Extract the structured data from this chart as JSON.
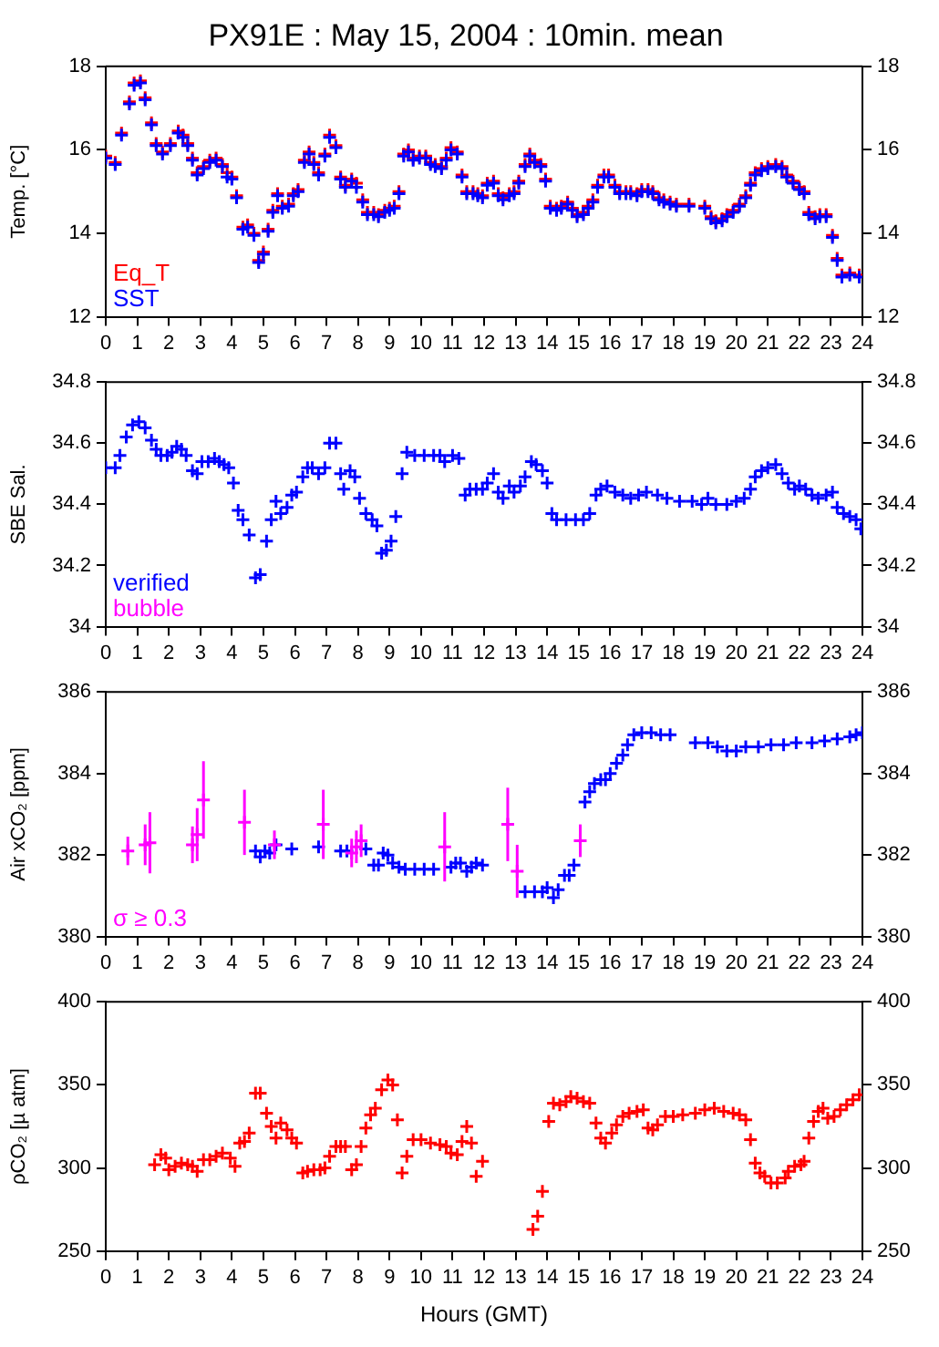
{
  "chart_data": [
    {
      "type": "scatter",
      "title": "PX91E : May 15, 2004 : 10min. mean",
      "ylabel": "Temp. [°C]",
      "xlim": [
        0,
        24
      ],
      "xticks": [
        0,
        1,
        2,
        3,
        4,
        5,
        6,
        7,
        8,
        9,
        10,
        11,
        12,
        13,
        14,
        15,
        16,
        17,
        18,
        19,
        20,
        21,
        22,
        23,
        24
      ],
      "ylim": [
        12,
        18
      ],
      "yticks": [
        12,
        14,
        16,
        18
      ],
      "y2lim": [
        12,
        18
      ],
      "y2ticks": [
        12,
        14,
        16,
        18
      ],
      "marker": "cross",
      "legend": "bottom left",
      "x": [
        0,
        0.3,
        0.5,
        0.75,
        0.9,
        1.1,
        1.25,
        1.45,
        1.6,
        1.8,
        2.05,
        2.3,
        2.45,
        2.6,
        2.75,
        2.9,
        3.1,
        3.3,
        3.5,
        3.7,
        3.85,
        4,
        4.15,
        4.35,
        4.5,
        4.7,
        4.85,
        5,
        5.15,
        5.3,
        5.45,
        5.6,
        5.8,
        5.95,
        6.1,
        6.3,
        6.45,
        6.6,
        6.75,
        6.95,
        7.1,
        7.3,
        7.45,
        7.6,
        7.8,
        7.95,
        8.15,
        8.3,
        8.5,
        8.65,
        8.85,
        9,
        9.15,
        9.3,
        9.45,
        9.6,
        9.75,
        9.95,
        10.15,
        10.3,
        10.45,
        10.65,
        10.8,
        10.95,
        11.15,
        11.3,
        11.45,
        11.65,
        11.8,
        11.95,
        12.1,
        12.3,
        12.45,
        12.6,
        12.8,
        12.95,
        13.1,
        13.3,
        13.45,
        13.6,
        13.8,
        13.95,
        14.1,
        14.3,
        14.45,
        14.65,
        14.8,
        14.95,
        15.15,
        15.3,
        15.45,
        15.6,
        15.8,
        15.95,
        16.15,
        16.3,
        16.5,
        16.65,
        16.85,
        17,
        17.2,
        17.35,
        17.55,
        17.7,
        17.9,
        18.1,
        18.5,
        19,
        19.2,
        19.35,
        19.55,
        19.7,
        19.9,
        20.1,
        20.3,
        20.45,
        20.6,
        20.8,
        21,
        21.25,
        21.45,
        21.6,
        21.8,
        22,
        22.15,
        22.3,
        22.5,
        22.65,
        22.85,
        23.05,
        23.2,
        23.35,
        23.6,
        23.9
      ],
      "series": [
        {
          "name": "Eq_T",
          "color": "#ff0000",
          "values": [
            15.85,
            15.7,
            16.4,
            17.15,
            17.6,
            17.65,
            17.25,
            16.65,
            16.15,
            15.95,
            16.15,
            16.45,
            16.35,
            16.15,
            15.8,
            15.45,
            15.6,
            15.75,
            15.8,
            15.65,
            15.45,
            15.35,
            14.9,
            14.15,
            14.2,
            14.0,
            13.35,
            13.55,
            14.1,
            14.55,
            14.95,
            14.65,
            14.7,
            14.95,
            15.05,
            15.75,
            15.95,
            15.7,
            15.45,
            15.9,
            16.35,
            16.1,
            15.35,
            15.15,
            15.3,
            15.2,
            14.8,
            14.5,
            14.5,
            14.45,
            14.55,
            14.6,
            14.65,
            15.0,
            15.9,
            16.0,
            15.8,
            15.85,
            15.85,
            15.7,
            15.65,
            15.6,
            15.8,
            16.05,
            15.95,
            15.4,
            15.0,
            15.0,
            14.95,
            14.9,
            15.2,
            15.25,
            14.95,
            14.85,
            14.95,
            15.0,
            15.25,
            15.65,
            15.9,
            15.75,
            15.65,
            15.3,
            14.65,
            14.6,
            14.65,
            14.75,
            14.6,
            14.45,
            14.5,
            14.65,
            14.8,
            15.15,
            15.4,
            15.4,
            15.15,
            15.0,
            15.0,
            15.0,
            14.95,
            15.05,
            15.05,
            15.0,
            14.85,
            14.8,
            14.75,
            14.7,
            14.7,
            14.65,
            14.4,
            14.3,
            14.35,
            14.45,
            14.55,
            14.7,
            14.9,
            15.2,
            15.45,
            15.55,
            15.6,
            15.65,
            15.6,
            15.4,
            15.25,
            15.1,
            15.0,
            14.5,
            14.4,
            14.45,
            14.45,
            13.95,
            13.4,
            13.0,
            13.05,
            13.0
          ]
        },
        {
          "name": "SST",
          "color": "#0000ff",
          "values": [
            15.8,
            15.65,
            16.35,
            17.1,
            17.55,
            17.6,
            17.2,
            16.6,
            16.1,
            15.9,
            16.1,
            16.4,
            16.3,
            16.1,
            15.75,
            15.4,
            15.55,
            15.7,
            15.75,
            15.6,
            15.35,
            15.3,
            14.85,
            14.1,
            14.15,
            13.95,
            13.3,
            13.5,
            14.05,
            14.5,
            14.9,
            14.6,
            14.65,
            14.9,
            15.0,
            15.7,
            15.9,
            15.65,
            15.4,
            15.85,
            16.3,
            16.05,
            15.3,
            15.1,
            15.25,
            15.1,
            14.75,
            14.45,
            14.45,
            14.4,
            14.5,
            14.55,
            14.6,
            14.95,
            15.85,
            15.95,
            15.75,
            15.8,
            15.8,
            15.65,
            15.6,
            15.55,
            15.75,
            16.0,
            15.9,
            15.35,
            14.95,
            14.95,
            14.9,
            14.85,
            15.15,
            15.2,
            14.9,
            14.8,
            14.9,
            14.95,
            15.2,
            15.6,
            15.85,
            15.7,
            15.6,
            15.25,
            14.6,
            14.55,
            14.6,
            14.7,
            14.55,
            14.4,
            14.45,
            14.6,
            14.75,
            15.1,
            15.35,
            15.35,
            15.1,
            14.95,
            14.95,
            14.95,
            14.9,
            15.0,
            15.0,
            14.95,
            14.8,
            14.75,
            14.7,
            14.65,
            14.65,
            14.6,
            14.35,
            14.25,
            14.3,
            14.4,
            14.5,
            14.65,
            14.85,
            15.15,
            15.4,
            15.5,
            15.55,
            15.6,
            15.55,
            15.35,
            15.2,
            15.05,
            14.95,
            14.45,
            14.35,
            14.4,
            14.4,
            13.9,
            13.35,
            12.95,
            13.0,
            12.95
          ]
        }
      ]
    },
    {
      "type": "scatter",
      "ylabel": "SBE Sal.",
      "xlim": [
        0,
        24
      ],
      "xticks": [
        0,
        1,
        2,
        3,
        4,
        5,
        6,
        7,
        8,
        9,
        10,
        11,
        12,
        13,
        14,
        15,
        16,
        17,
        18,
        19,
        20,
        21,
        22,
        23,
        24
      ],
      "ylim": [
        34,
        34.8
      ],
      "yticks": [
        34,
        34.2,
        34.4,
        34.6,
        34.8
      ],
      "y2lim": [
        34,
        34.8
      ],
      "y2ticks": [
        34,
        34.2,
        34.4,
        34.6,
        34.8
      ],
      "marker": "cross",
      "legend": "bottom left",
      "series": [
        {
          "name": "verified",
          "color": "#0000ff",
          "x": [
            0,
            0.3,
            0.45,
            0.65,
            0.85,
            1.05,
            1.25,
            1.45,
            1.6,
            1.75,
            1.95,
            2.1,
            2.25,
            2.4,
            2.55,
            2.75,
            2.9,
            3.05,
            3.25,
            3.45,
            3.6,
            3.75,
            3.9,
            4.05,
            4.2,
            4.35,
            4.55,
            4.75,
            4.9,
            5.1,
            5.25,
            5.4,
            5.55,
            5.75,
            5.9,
            6.05,
            6.25,
            6.4,
            6.55,
            6.75,
            6.95,
            7.1,
            7.3,
            7.45,
            7.55,
            7.75,
            7.9,
            8.05,
            8.25,
            8.45,
            8.6,
            8.75,
            8.9,
            9.05,
            9.2,
            9.4,
            9.55,
            9.8,
            10.1,
            10.4,
            10.6,
            10.75,
            11,
            11.2,
            11.4,
            11.55,
            11.75,
            11.95,
            12.1,
            12.3,
            12.45,
            12.6,
            12.8,
            12.95,
            13.15,
            13.3,
            13.5,
            13.65,
            13.85,
            14,
            14.15,
            14.3,
            14.6,
            14.9,
            15.15,
            15.35,
            15.55,
            15.7,
            15.9,
            16.15,
            16.4,
            16.65,
            16.9,
            17.15,
            17.5,
            17.8,
            18.2,
            18.6,
            18.9,
            19.1,
            19.35,
            19.7,
            20,
            20.25,
            20.45,
            20.6,
            20.8,
            21,
            21.25,
            21.45,
            21.65,
            21.85,
            22,
            22.2,
            22.4,
            22.6,
            22.85,
            23.05,
            23.2,
            23.4,
            23.6,
            23.8,
            23.95
          ],
          "values": [
            34.52,
            34.52,
            34.56,
            34.62,
            34.66,
            34.67,
            34.65,
            34.61,
            34.58,
            34.56,
            34.56,
            34.57,
            34.59,
            34.58,
            34.56,
            34.51,
            34.5,
            34.54,
            34.54,
            34.55,
            34.54,
            34.53,
            34.52,
            34.47,
            34.38,
            34.35,
            34.3,
            34.16,
            34.17,
            34.28,
            34.35,
            34.41,
            34.37,
            34.39,
            34.43,
            34.44,
            34.49,
            34.52,
            34.52,
            34.5,
            34.52,
            34.6,
            34.6,
            34.5,
            34.45,
            34.51,
            34.49,
            34.42,
            34.37,
            34.35,
            34.33,
            34.24,
            34.25,
            34.28,
            34.36,
            34.5,
            34.57,
            34.56,
            34.56,
            34.56,
            34.56,
            34.54,
            34.56,
            34.55,
            34.43,
            34.45,
            34.45,
            34.45,
            34.47,
            34.5,
            34.44,
            34.42,
            34.46,
            34.44,
            34.46,
            34.49,
            34.54,
            34.53,
            34.51,
            34.47,
            34.37,
            34.35,
            34.35,
            34.35,
            34.35,
            34.37,
            34.43,
            34.45,
            34.46,
            34.44,
            34.43,
            34.42,
            34.43,
            34.44,
            34.43,
            34.42,
            34.41,
            34.41,
            34.4,
            34.42,
            34.4,
            34.4,
            34.41,
            34.42,
            34.45,
            34.49,
            34.51,
            34.52,
            34.53,
            34.5,
            34.47,
            34.45,
            34.46,
            34.45,
            34.43,
            34.42,
            34.43,
            34.44,
            34.39,
            34.37,
            34.36,
            34.35,
            34.32
          ]
        },
        {
          "name": "bubble",
          "color": "#ff00ff"
        }
      ]
    },
    {
      "type": "scatter",
      "ylabel": "Air xCO₂ [ppm]",
      "xlim": [
        0,
        24
      ],
      "xticks": [
        0,
        1,
        2,
        3,
        4,
        5,
        6,
        7,
        8,
        9,
        10,
        11,
        12,
        13,
        14,
        15,
        16,
        17,
        18,
        19,
        20,
        21,
        22,
        23,
        24
      ],
      "ylim": [
        380,
        386
      ],
      "yticks": [
        380,
        382,
        384,
        386
      ],
      "y2lim": [
        380,
        386
      ],
      "y2ticks": [
        380,
        382,
        384,
        386
      ],
      "marker": "cross",
      "legend": "bottom left",
      "series": [
        {
          "color": "#0000ff",
          "x": [
            4.75,
            4.9,
            5.05,
            5.2,
            5.4,
            5.9,
            6.75,
            7.45,
            7.65,
            8.25,
            8.5,
            8.65,
            8.8,
            8.95,
            9.1,
            9.3,
            9.5,
            9.8,
            10.1,
            10.4,
            10.95,
            11.1,
            11.25,
            11.45,
            11.6,
            11.75,
            11.95,
            13.3,
            13.6,
            13.85,
            14,
            14.2,
            14.35,
            14.55,
            14.7,
            14.85,
            15.2,
            15.35,
            15.5,
            15.7,
            15.85,
            16,
            16.2,
            16.4,
            16.55,
            16.75,
            17,
            17.3,
            17.6,
            17.9,
            18.7,
            19.1,
            19.4,
            19.7,
            20,
            20.3,
            20.7,
            21.1,
            21.5,
            21.9,
            22.4,
            22.8,
            23.2,
            23.6,
            23.8,
            24
          ],
          "values": [
            382.1,
            381.95,
            382.1,
            382.05,
            382.25,
            382.15,
            382.2,
            382.1,
            382.1,
            382.15,
            381.75,
            381.75,
            382.05,
            382.0,
            381.8,
            381.7,
            381.65,
            381.65,
            381.65,
            381.65,
            381.7,
            381.8,
            381.8,
            381.6,
            381.7,
            381.8,
            381.75,
            381.1,
            381.1,
            381.1,
            381.2,
            380.95,
            381.15,
            381.5,
            381.5,
            381.75,
            383.3,
            383.55,
            383.75,
            383.85,
            383.85,
            384.0,
            384.25,
            384.45,
            384.7,
            384.95,
            385.0,
            385.0,
            384.95,
            384.95,
            384.75,
            384.75,
            384.65,
            384.55,
            384.55,
            384.65,
            384.65,
            384.7,
            384.7,
            384.75,
            384.75,
            384.8,
            384.85,
            384.9,
            384.95,
            385.0
          ]
        },
        {
          "name": "σ ≥ 0.3",
          "color": "#ff00ff",
          "x": [
            0.7,
            1.25,
            1.4,
            2.75,
            2.9,
            3.1,
            4.4,
            5.35,
            6.9,
            7.8,
            7.95,
            8.1,
            10.75,
            12.75,
            13.05,
            15.05
          ],
          "values": [
            382.1,
            382.25,
            382.3,
            382.25,
            382.5,
            383.35,
            382.8,
            382.25,
            382.75,
            382.05,
            382.2,
            382.35,
            382.2,
            382.75,
            381.6,
            382.35
          ],
          "errors": [
            0.35,
            0.5,
            0.75,
            0.45,
            0.65,
            0.95,
            0.8,
            0.35,
            0.85,
            0.35,
            0.4,
            0.4,
            0.85,
            0.9,
            0.65,
            0.4
          ]
        }
      ]
    },
    {
      "type": "scatter",
      "ylabel": "ρCO₂ [µ atm]",
      "xlabel": "Hours (GMT)",
      "xlim": [
        0,
        24
      ],
      "xticks": [
        0,
        1,
        2,
        3,
        4,
        5,
        6,
        7,
        8,
        9,
        10,
        11,
        12,
        13,
        14,
        15,
        16,
        17,
        18,
        19,
        20,
        21,
        22,
        23,
        24
      ],
      "ylim": [
        250,
        400
      ],
      "yticks": [
        250,
        300,
        350,
        400
      ],
      "y2lim": [
        250,
        400
      ],
      "y2ticks": [
        250,
        300,
        350,
        400
      ],
      "marker": "cross",
      "series": [
        {
          "color": "#ff0000",
          "x": [
            1.55,
            1.75,
            1.9,
            2,
            2.2,
            2.4,
            2.6,
            2.75,
            2.9,
            3.1,
            3.3,
            3.5,
            3.7,
            3.95,
            4.1,
            4.25,
            4.4,
            4.55,
            4.75,
            4.9,
            5.1,
            5.25,
            5.4,
            5.55,
            5.75,
            5.9,
            6.05,
            6.25,
            6.4,
            6.6,
            6.8,
            6.95,
            7.1,
            7.3,
            7.45,
            7.6,
            7.8,
            7.95,
            8.1,
            8.25,
            8.4,
            8.55,
            8.75,
            8.95,
            9.1,
            9.25,
            9.4,
            9.55,
            9.75,
            10,
            10.3,
            10.6,
            10.8,
            10.95,
            11.15,
            11.3,
            11.45,
            11.6,
            11.75,
            11.95,
            13.55,
            13.7,
            13.85,
            14.05,
            14.2,
            14.4,
            14.6,
            14.75,
            14.95,
            15.15,
            15.35,
            15.55,
            15.7,
            15.85,
            16.05,
            16.2,
            16.4,
            16.6,
            16.85,
            17.05,
            17.2,
            17.35,
            17.5,
            17.75,
            18,
            18.3,
            18.7,
            19,
            19.3,
            19.6,
            19.9,
            20.1,
            20.3,
            20.45,
            20.6,
            20.75,
            20.9,
            21.1,
            21.3,
            21.55,
            21.65,
            21.85,
            22.05,
            22.15,
            22.3,
            22.45,
            22.6,
            22.75,
            22.9,
            23.1,
            23.3,
            23.5,
            23.7,
            23.9
          ],
          "values": [
            302,
            308,
            306,
            299,
            301,
            303,
            302,
            301,
            298,
            305,
            305,
            307,
            309,
            306,
            301,
            315,
            316,
            321,
            345,
            345,
            333,
            325,
            318,
            327,
            323,
            318,
            315,
            297,
            298,
            299,
            299,
            300,
            307,
            313,
            313,
            313,
            299,
            302,
            313,
            324,
            332,
            336,
            347,
            353,
            350,
            329,
            297,
            307,
            317,
            317,
            315,
            314,
            313,
            309,
            308,
            316,
            325,
            315,
            295,
            304,
            263,
            271,
            286,
            328,
            339,
            338,
            340,
            343,
            342,
            340,
            339,
            327,
            318,
            315,
            321,
            326,
            331,
            333,
            334,
            335,
            324,
            323,
            326,
            331,
            331,
            332,
            333,
            335,
            336,
            334,
            333,
            332,
            329,
            317,
            303,
            297,
            295,
            291,
            291,
            294,
            298,
            301,
            302,
            304,
            318,
            328,
            334,
            336,
            330,
            331,
            335,
            338,
            341,
            344
          ]
        }
      ]
    }
  ]
}
